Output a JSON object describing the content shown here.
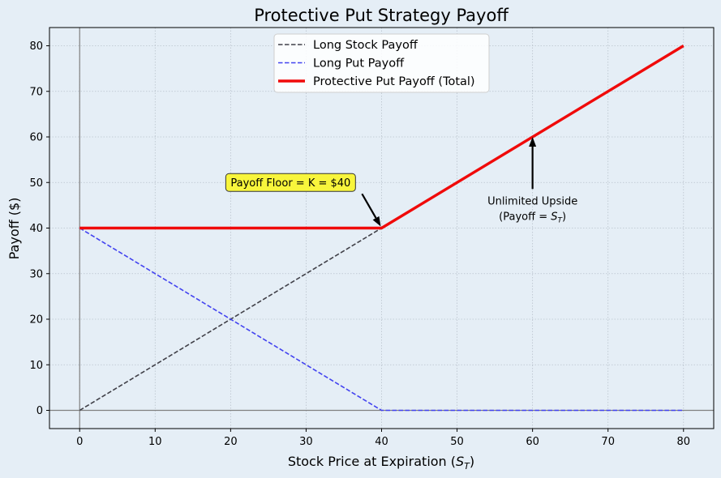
{
  "chart_data": {
    "type": "line",
    "title": "Protective Put Strategy Payoff",
    "xlabel": "Stock Price at Expiration (S_T)",
    "xlabel_main": "Stock Price at Expiration (",
    "xlabel_var": "S",
    "xlabel_sub": "T",
    "xlabel_end": ")",
    "ylabel": "Payoff ($)",
    "xlim": [
      -4,
      84
    ],
    "ylim": [
      -4,
      84
    ],
    "xticks": [
      0,
      10,
      20,
      30,
      40,
      50,
      60,
      70,
      80
    ],
    "yticks": [
      0,
      10,
      20,
      30,
      40,
      50,
      60,
      70,
      80
    ],
    "grid": true,
    "legend_position": "top-center",
    "reference_lines": {
      "x": 0,
      "y": 0,
      "color": "#808080"
    },
    "series": [
      {
        "name": "Long Stock Payoff",
        "color": "#404048",
        "style": "dashed",
        "points": [
          [
            0,
            0
          ],
          [
            40,
            40
          ]
        ]
      },
      {
        "name": "Long Put Payoff",
        "color": "#4242f0",
        "style": "dashed",
        "points": [
          [
            0,
            40
          ],
          [
            40,
            0
          ],
          [
            80,
            0
          ]
        ]
      },
      {
        "name": "Protective Put Payoff (Total)",
        "color": "#f00a0a",
        "style": "solid-thick",
        "points": [
          [
            0,
            40
          ],
          [
            40,
            40
          ],
          [
            80,
            80
          ]
        ]
      }
    ],
    "annotations": [
      {
        "id": "floor",
        "text": "Payoff Floor = K = $40",
        "label_at": [
          20,
          50
        ],
        "arrow_to": [
          40,
          40
        ],
        "box_color": "#f8f53c"
      },
      {
        "id": "upside",
        "line1": "Unlimited Upside",
        "line2_prefix": "(Payoff = ",
        "line2_var": "S",
        "line2_sub": "T",
        "line2_suffix": ")",
        "label_at": [
          60,
          42
        ],
        "arrow_to": [
          60,
          60
        ]
      }
    ]
  }
}
